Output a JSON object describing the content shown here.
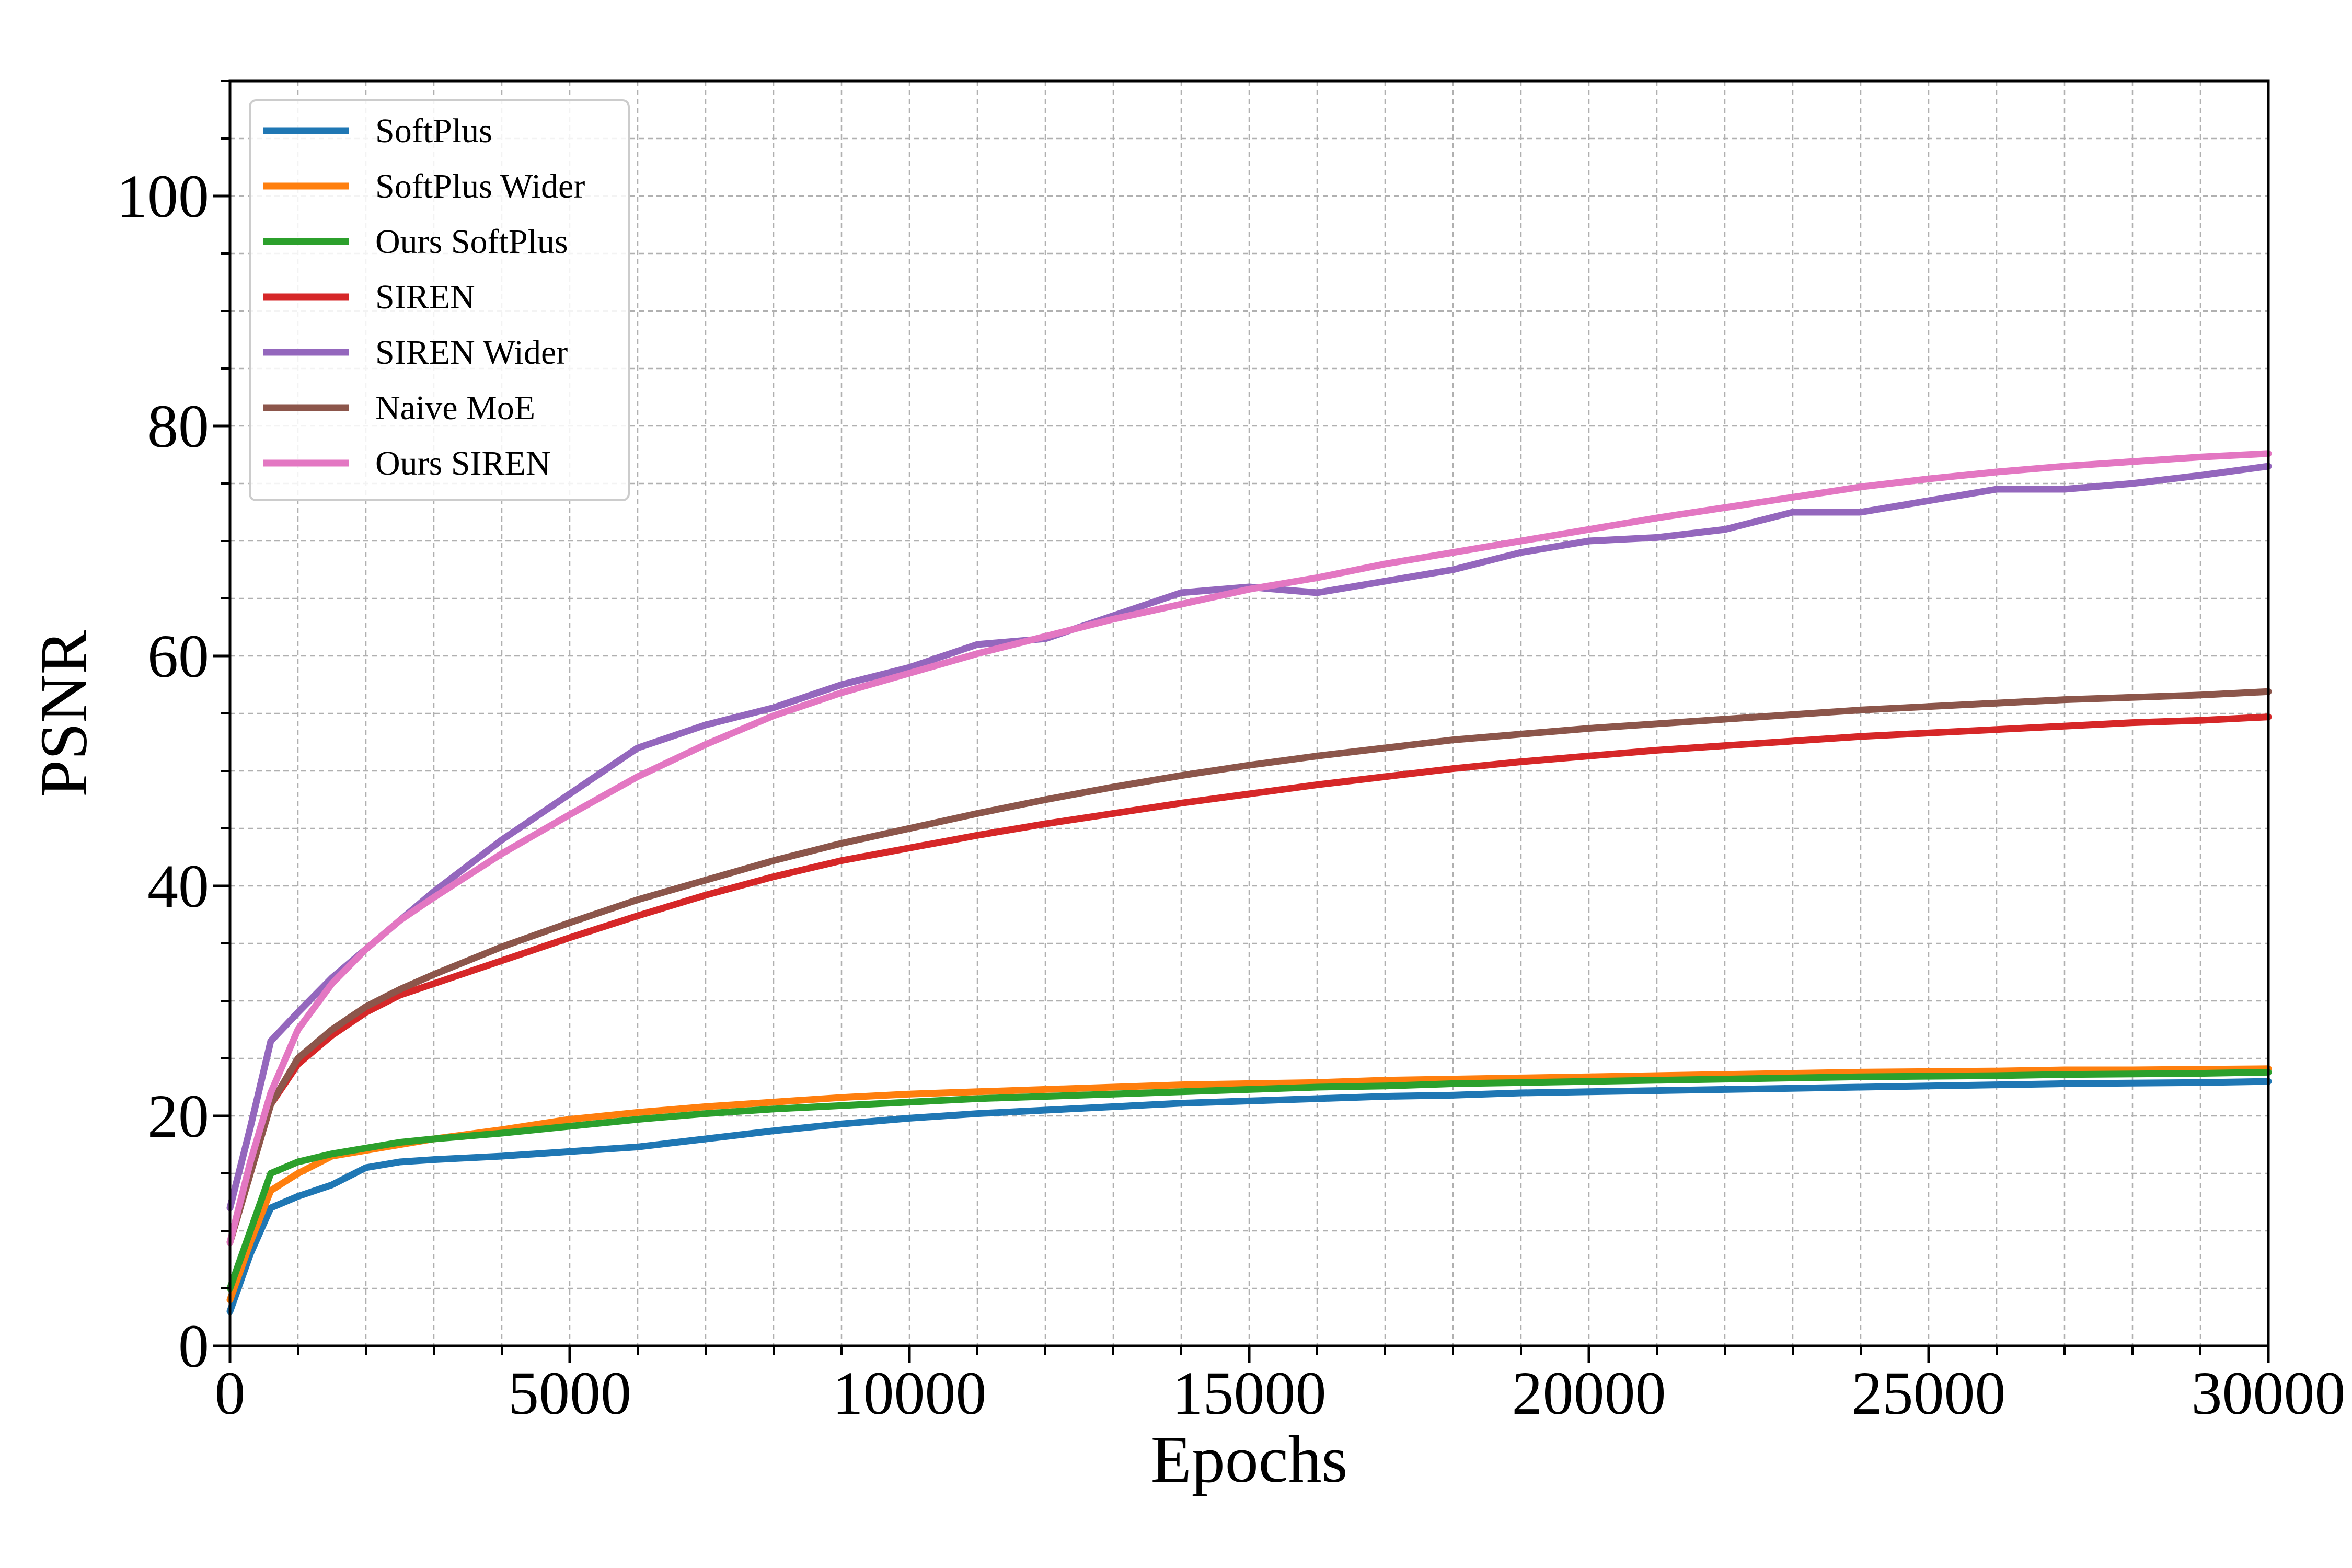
{
  "chart_data": {
    "type": "line",
    "title": "",
    "xlabel": "Epochs",
    "ylabel": "PSNR",
    "xlim": [
      0,
      30000
    ],
    "ylim": [
      0,
      110
    ],
    "xticks": [
      0,
      5000,
      10000,
      15000,
      20000,
      25000,
      30000
    ],
    "xtick_labels": [
      "0",
      "5000",
      "10000",
      "15000",
      "20000",
      "25000",
      "30000"
    ],
    "yticks": [
      0,
      20,
      40,
      60,
      80,
      100
    ],
    "ytick_labels": [
      "0",
      "20",
      "40",
      "60",
      "80",
      "100"
    ],
    "grid": true,
    "legend_position": "top-left",
    "x": [
      0,
      300,
      600,
      1000,
      1500,
      2000,
      2500,
      3000,
      4000,
      5000,
      6000,
      7000,
      8000,
      9000,
      10000,
      11000,
      12000,
      13000,
      14000,
      15000,
      16000,
      17000,
      18000,
      19000,
      20000,
      21000,
      22000,
      23000,
      24000,
      25000,
      26000,
      27000,
      28000,
      29000,
      30000
    ],
    "series": [
      {
        "name": "SoftPlus",
        "color": "#1f77b4",
        "values": [
          3,
          8,
          12,
          13,
          14,
          15.5,
          16,
          16.2,
          16.5,
          16.9,
          17.3,
          18,
          18.7,
          19.3,
          19.8,
          20.2,
          20.5,
          20.8,
          21.1,
          21.3,
          21.5,
          21.7,
          21.8,
          22,
          22.1,
          22.2,
          22.3,
          22.4,
          22.5,
          22.6,
          22.7,
          22.8,
          22.85,
          22.9,
          23
        ]
      },
      {
        "name": "SoftPlus Wider",
        "color": "#ff7f0e",
        "values": [
          4,
          9,
          13.5,
          15,
          16.5,
          17,
          17.5,
          18,
          18.8,
          19.7,
          20.3,
          20.8,
          21.2,
          21.6,
          21.9,
          22.1,
          22.3,
          22.5,
          22.7,
          22.8,
          22.9,
          23.1,
          23.2,
          23.3,
          23.4,
          23.5,
          23.6,
          23.7,
          23.8,
          23.85,
          23.9,
          24,
          24,
          24.05,
          24.1
        ]
      },
      {
        "name": "Ours SoftPlus",
        "color": "#2ca02c",
        "values": [
          5,
          10,
          15,
          16,
          16.7,
          17.2,
          17.7,
          18,
          18.5,
          19.1,
          19.7,
          20.2,
          20.6,
          20.9,
          21.2,
          21.5,
          21.7,
          21.9,
          22.1,
          22.3,
          22.5,
          22.6,
          22.8,
          22.9,
          23,
          23.1,
          23.2,
          23.3,
          23.4,
          23.45,
          23.5,
          23.6,
          23.65,
          23.7,
          23.8
        ]
      },
      {
        "name": "SIREN",
        "color": "#d62728",
        "values": [
          9,
          15,
          21,
          24.5,
          27,
          29,
          30.5,
          31.5,
          33.5,
          35.5,
          37.4,
          39.2,
          40.8,
          42.2,
          43.3,
          44.4,
          45.4,
          46.3,
          47.2,
          48,
          48.8,
          49.5,
          50.2,
          50.8,
          51.3,
          51.8,
          52.2,
          52.6,
          53,
          53.3,
          53.6,
          53.9,
          54.2,
          54.4,
          54.7
        ]
      },
      {
        "name": "SIREN Wider",
        "color": "#9467bd",
        "values": [
          12,
          19,
          26.5,
          29,
          32,
          34.5,
          37,
          39.5,
          44,
          48,
          52,
          54,
          55.5,
          57.5,
          59,
          61,
          61.5,
          63.5,
          65.5,
          66,
          65.5,
          66.5,
          67.5,
          69,
          70,
          70.3,
          71,
          72.5,
          72.5,
          73.5,
          74.5,
          74.5,
          75,
          75.7,
          76.5
        ]
      },
      {
        "name": "Naive MoE",
        "color": "#8c564b",
        "values": [
          9,
          15,
          21,
          25,
          27.5,
          29.5,
          31,
          32.3,
          34.7,
          36.8,
          38.8,
          40.5,
          42.2,
          43.7,
          45,
          46.3,
          47.5,
          48.6,
          49.6,
          50.5,
          51.3,
          52,
          52.7,
          53.2,
          53.7,
          54.1,
          54.5,
          54.9,
          55.3,
          55.6,
          55.9,
          56.2,
          56.4,
          56.6,
          56.9
        ]
      },
      {
        "name": "Ours SIREN",
        "color": "#e377c2",
        "values": [
          9,
          16,
          22,
          27.5,
          31.5,
          34.5,
          37,
          39,
          42.8,
          46.2,
          49.5,
          52.3,
          54.8,
          56.8,
          58.5,
          60.2,
          61.7,
          63.2,
          64.5,
          65.8,
          66.8,
          68,
          69,
          70,
          71,
          72,
          72.9,
          73.8,
          74.7,
          75.4,
          76,
          76.5,
          76.9,
          77.3,
          77.6
        ]
      }
    ]
  }
}
